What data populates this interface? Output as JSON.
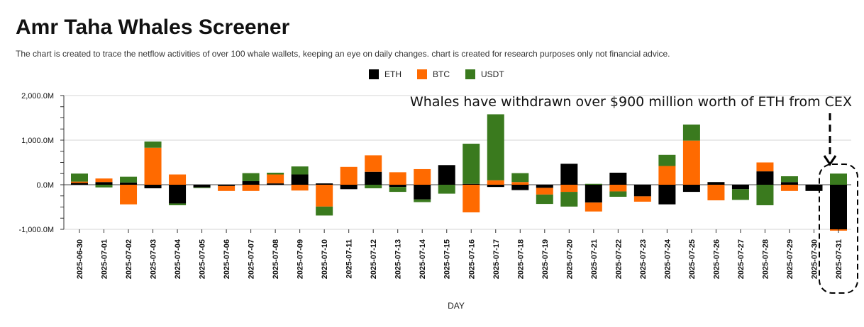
{
  "title": "Amr Taha Whales Screener",
  "subtitle": "The chart is created to trace the netflow activities of over 100 whale wallets, keeping an eye on daily changes.  chart is created for research purposes only not financial advice.",
  "annotation": "Whales have withdrawn over $900 million worth of ETH from CEX",
  "colors": {
    "ETH": "#000000",
    "BTC": "#ff6a00",
    "USDT": "#3a7a1e"
  },
  "chart_data": {
    "type": "bar",
    "stacked": true,
    "xlabel": "DAY",
    "ylabel": "",
    "ylim": [
      -1000,
      2000
    ],
    "yticks": [
      "2,000.0M",
      "1,000.0M",
      "0.0M",
      "-1,000.0M"
    ],
    "ytick_values": [
      2000,
      1000,
      0,
      -1000
    ],
    "grid": true,
    "legend_position": "top",
    "categories": [
      "2025-06-30",
      "2025-07-01",
      "2025-07-02",
      "2025-07-03",
      "2025-07-04",
      "2025-07-05",
      "2025-07-06",
      "2025-07-07",
      "2025-07-08",
      "2025-07-09",
      "2025-07-10",
      "2025-07-11",
      "2025-07-12",
      "2025-07-13",
      "2025-07-14",
      "2025-07-15",
      "2025-07-16",
      "2025-07-17",
      "2025-07-18",
      "2025-07-19",
      "2025-07-20",
      "2025-07-21",
      "2025-07-22",
      "2025-07-23",
      "2025-07-24",
      "2025-07-25",
      "2025-07-26",
      "2025-07-27",
      "2025-07-28",
      "2025-07-29",
      "2025-07-30",
      "2025-07-31"
    ],
    "series": [
      {
        "name": "ETH",
        "values": [
          40,
          60,
          50,
          -80,
          -420,
          -60,
          -30,
          80,
          30,
          230,
          30,
          -100,
          290,
          -50,
          -330,
          440,
          20,
          -50,
          -120,
          -70,
          470,
          -400,
          270,
          -260,
          -440,
          -160,
          60,
          -100,
          300,
          60,
          -140,
          -1000
        ]
      },
      {
        "name": "BTC",
        "values": [
          30,
          80,
          -440,
          830,
          230,
          0,
          -110,
          -140,
          200,
          -130,
          -490,
          400,
          370,
          280,
          350,
          0,
          -620,
          100,
          60,
          -150,
          -160,
          -200,
          -150,
          -120,
          420,
          990,
          -350,
          0,
          200,
          -140,
          0,
          -30
        ]
      },
      {
        "name": "USDT",
        "values": [
          180,
          -60,
          130,
          140,
          -40,
          -10,
          0,
          180,
          40,
          180,
          -200,
          0,
          -80,
          -110,
          -60,
          -200,
          900,
          1480,
          200,
          -210,
          -330,
          20,
          -120,
          0,
          250,
          360,
          0,
          -240,
          -460,
          130,
          0,
          250
        ]
      }
    ]
  }
}
